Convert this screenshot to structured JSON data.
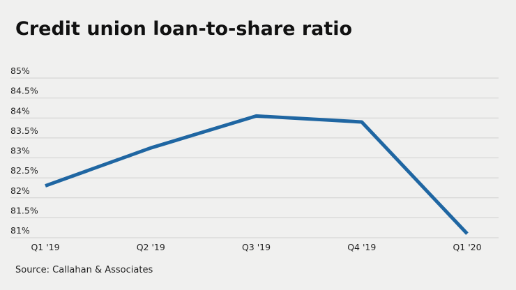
{
  "chart_data": {
    "type": "line",
    "title": "Credit union loan-to-share ratio",
    "categories": [
      "Q1 '19",
      "Q2 '19",
      "Q3 '19",
      "Q4 '19",
      "Q1 '20"
    ],
    "series": [
      {
        "name": "Loan-to-share ratio",
        "color": "#1f66a2",
        "values": [
          82.3,
          83.25,
          84.05,
          83.9,
          81.1
        ]
      }
    ],
    "ylim": [
      81,
      85
    ],
    "yticks": [
      {
        "value": 81,
        "label": "81%"
      },
      {
        "value": 81.5,
        "label": "81.5%"
      },
      {
        "value": 82,
        "label": "82%"
      },
      {
        "value": 82.5,
        "label": "82.5%"
      },
      {
        "value": 83,
        "label": "83%"
      },
      {
        "value": 83.5,
        "label": "83.5%"
      },
      {
        "value": 84,
        "label": "84%"
      },
      {
        "value": 84.5,
        "label": "84.5%"
      },
      {
        "value": 85,
        "label": "85%"
      }
    ],
    "grid": true,
    "source": "Source: Callahan & Associates"
  }
}
